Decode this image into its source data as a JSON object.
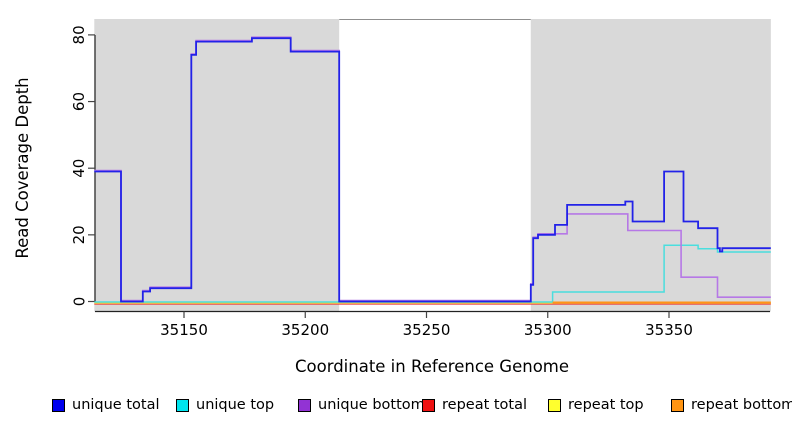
{
  "chart_data": {
    "type": "line",
    "subtype": "step-coverage-plot",
    "title": "",
    "xlabel": "Coordinate in Reference Genome",
    "ylabel": "Read Coverage Depth",
    "x_ticks": [
      35150,
      35200,
      35250,
      35300,
      35350
    ],
    "y_ticks": [
      0,
      20,
      40,
      60,
      80
    ],
    "xlim": [
      35113,
      35392
    ],
    "ylim": [
      -3,
      84.5
    ],
    "grid": false,
    "shaded_regions": [
      {
        "x0": 35113,
        "x1": 35214,
        "color": "#d9d9d9"
      },
      {
        "x0": 35293,
        "x1": 35392,
        "color": "#d9d9d9"
      }
    ],
    "gap_region": {
      "x0": 35214,
      "x1": 35293,
      "top_line_color": "#8f8f8f"
    },
    "series": [
      {
        "name": "unique total",
        "color": "#2222e8",
        "width": 1.8,
        "points": [
          [
            35113,
            39
          ],
          [
            35124,
            0
          ],
          [
            35133,
            3
          ],
          [
            35136,
            4
          ],
          [
            35153,
            74
          ],
          [
            35155,
            78
          ],
          [
            35178,
            79
          ],
          [
            35194,
            75
          ],
          [
            35214,
            0
          ],
          [
            35293,
            5
          ],
          [
            35294,
            19
          ],
          [
            35296,
            20
          ],
          [
            35303,
            23
          ],
          [
            35308,
            29
          ],
          [
            35332,
            30
          ],
          [
            35335,
            24
          ],
          [
            35348,
            39
          ],
          [
            35356,
            24
          ],
          [
            35362,
            22
          ],
          [
            35370,
            16
          ],
          [
            35371,
            15
          ],
          [
            35372,
            16
          ],
          [
            35392,
            16
          ]
        ]
      },
      {
        "name": "unique top",
        "color": "#30dede",
        "width": 1.5,
        "points": [
          [
            35113,
            0
          ],
          [
            35302,
            3
          ],
          [
            35348,
            17
          ],
          [
            35362,
            16
          ],
          [
            35370,
            15
          ],
          [
            35392,
            15
          ]
        ]
      },
      {
        "name": "unique bottom",
        "color": "#b678e6",
        "width": 1.6,
        "points": [
          [
            35113,
            39
          ],
          [
            35124,
            0
          ],
          [
            35133,
            3
          ],
          [
            35136,
            4
          ],
          [
            35153,
            74
          ],
          [
            35155,
            78
          ],
          [
            35178,
            79
          ],
          [
            35194,
            75
          ],
          [
            35214,
            0
          ],
          [
            35293,
            5
          ],
          [
            35294,
            19
          ],
          [
            35296,
            20
          ],
          [
            35308,
            26
          ],
          [
            35333,
            21
          ],
          [
            35355,
            7
          ],
          [
            35370,
            1
          ],
          [
            35392,
            1
          ]
        ]
      },
      {
        "name": "repeat total",
        "color": "#ee3333",
        "width": 1.2,
        "points": [
          [
            35113,
            0
          ],
          [
            35392,
            0
          ]
        ]
      },
      {
        "name": "repeat top",
        "color": "#eedd55",
        "width": 1.4,
        "points": [
          [
            35113,
            0
          ],
          [
            35392,
            0
          ]
        ]
      },
      {
        "name": "repeat bottom",
        "color": "#ff9418",
        "width": 2,
        "points": [
          [
            35302,
            0
          ],
          [
            35392,
            0
          ]
        ]
      }
    ]
  },
  "legend": {
    "items": [
      {
        "label": "unique total",
        "color": "#0000ee"
      },
      {
        "label": "unique top",
        "color": "#00e5ee"
      },
      {
        "label": "unique bottom",
        "color": "#9233d4"
      },
      {
        "label": "repeat total",
        "color": "#ee1111"
      },
      {
        "label": "repeat top",
        "color": "#ffff2e"
      },
      {
        "label": "repeat bottom",
        "color": "#ff9412"
      }
    ]
  }
}
